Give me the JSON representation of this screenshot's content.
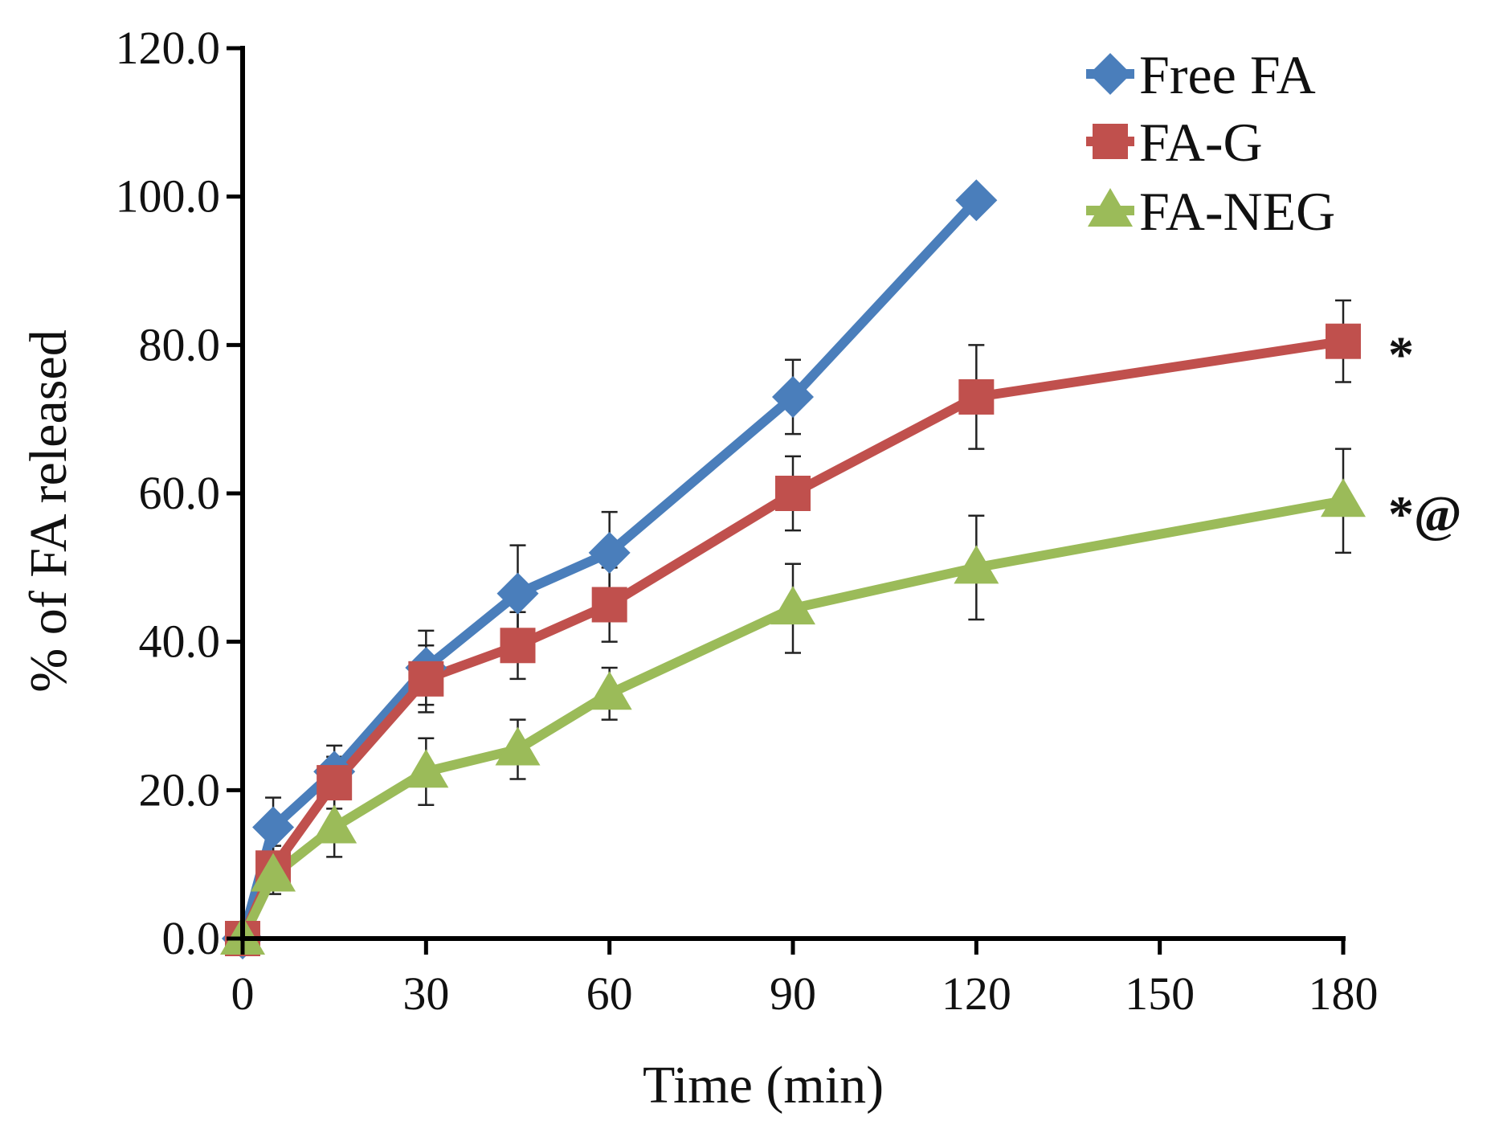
{
  "chart_data": {
    "type": "line",
    "title": "",
    "xlabel": "Time (min)",
    "ylabel": "% of FA released",
    "xlim": [
      0,
      180
    ],
    "ylim": [
      0,
      120
    ],
    "x_ticks": [
      0,
      30,
      60,
      90,
      120,
      150,
      180
    ],
    "x_tick_labels": [
      "0",
      "30",
      "60",
      "90",
      "120",
      "150",
      "180"
    ],
    "y_ticks": [
      0,
      20,
      40,
      60,
      80,
      100,
      120
    ],
    "y_tick_labels": [
      "0.0",
      "20.0",
      "40.0",
      "60.0",
      "80.0",
      "100.0",
      "120.0"
    ],
    "grid": false,
    "legend_position": "top-right",
    "series": [
      {
        "name": "Free FA",
        "color": "#4a7ebb",
        "marker": "diamond",
        "x": [
          0,
          5,
          15,
          30,
          45,
          60,
          90,
          120
        ],
        "y": [
          0,
          15.0,
          22.5,
          36.5,
          46.5,
          52.0,
          73.0,
          99.5
        ],
        "error": [
          0,
          4.0,
          3.5,
          5.0,
          6.5,
          5.5,
          5.0,
          0
        ]
      },
      {
        "name": "FA-G",
        "color": "#c0504d",
        "marker": "square",
        "x": [
          0,
          5,
          15,
          30,
          45,
          60,
          90,
          120,
          180
        ],
        "y": [
          0,
          9.5,
          21.0,
          35.0,
          39.5,
          45.0,
          60.0,
          73.0,
          80.5
        ],
        "error": [
          0,
          3.0,
          3.5,
          4.5,
          4.5,
          5.0,
          5.0,
          7.0,
          5.5
        ]
      },
      {
        "name": "FA-NEG",
        "color": "#9bbb59",
        "marker": "triangle",
        "x": [
          0,
          5,
          15,
          30,
          45,
          60,
          90,
          120,
          180
        ],
        "y": [
          0,
          8.5,
          15.0,
          22.5,
          25.5,
          33.0,
          44.5,
          50.0,
          59.0
        ],
        "error": [
          0,
          2.5,
          4.0,
          4.5,
          4.0,
          3.5,
          6.0,
          7.0,
          7.0
        ]
      }
    ],
    "annotations": [
      {
        "text": "*",
        "x": 180,
        "y": 80.5,
        "series": "FA-G"
      },
      {
        "text": "*@",
        "x": 180,
        "y": 59.0,
        "series": "FA-NEG"
      }
    ]
  }
}
